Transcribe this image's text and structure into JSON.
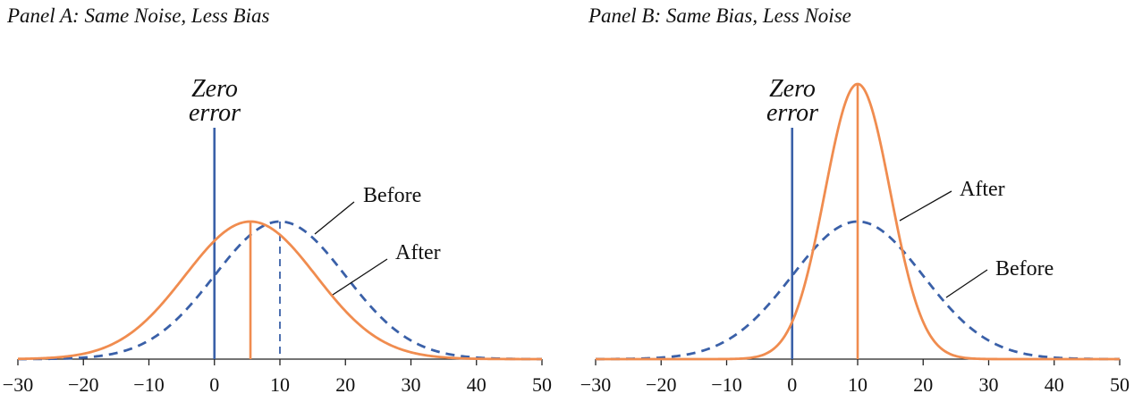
{
  "chart_data": [
    {
      "type": "line",
      "title": "Panel A: Same Noise, Less Bias",
      "xlabel": "",
      "ylabel": "",
      "xlim": [
        -30,
        50
      ],
      "x_ticks": [
        -30,
        -20,
        -10,
        0,
        10,
        20,
        30,
        40,
        50
      ],
      "x_tick_labels": [
        "−30",
        "−20",
        "−10",
        "0",
        "10",
        "20",
        "30",
        "40",
        "50"
      ],
      "grid": false,
      "reference_line": {
        "x": 0,
        "label_line1": "Zero",
        "label_line2": "error",
        "color": "#3a60a8"
      },
      "series": [
        {
          "name": "Before",
          "distribution": "normal",
          "mean": 10,
          "sd": 10,
          "style": "dashed",
          "color": "#3a60a8",
          "peak_height": 1.0
        },
        {
          "name": "After",
          "distribution": "normal",
          "mean": 5.5,
          "sd": 10,
          "style": "solid",
          "color": "#f08c4f",
          "peak_height": 1.0
        }
      ]
    },
    {
      "type": "line",
      "title": "Panel B: Same Bias, Less Noise",
      "xlabel": "",
      "ylabel": "",
      "xlim": [
        -30,
        50
      ],
      "x_ticks": [
        -30,
        -20,
        -10,
        0,
        10,
        20,
        30,
        40,
        50
      ],
      "x_tick_labels": [
        "−30",
        "−20",
        "−10",
        "0",
        "10",
        "20",
        "30",
        "40",
        "50"
      ],
      "grid": false,
      "reference_line": {
        "x": 0,
        "label_line1": "Zero",
        "label_line2": "error",
        "color": "#3a60a8"
      },
      "series": [
        {
          "name": "Before",
          "distribution": "normal",
          "mean": 10,
          "sd": 10,
          "style": "dashed",
          "color": "#3a60a8",
          "peak_height": 1.0
        },
        {
          "name": "After",
          "distribution": "normal",
          "mean": 10,
          "sd": 5,
          "style": "solid",
          "color": "#f08c4f",
          "peak_height": 2.0
        }
      ]
    }
  ]
}
